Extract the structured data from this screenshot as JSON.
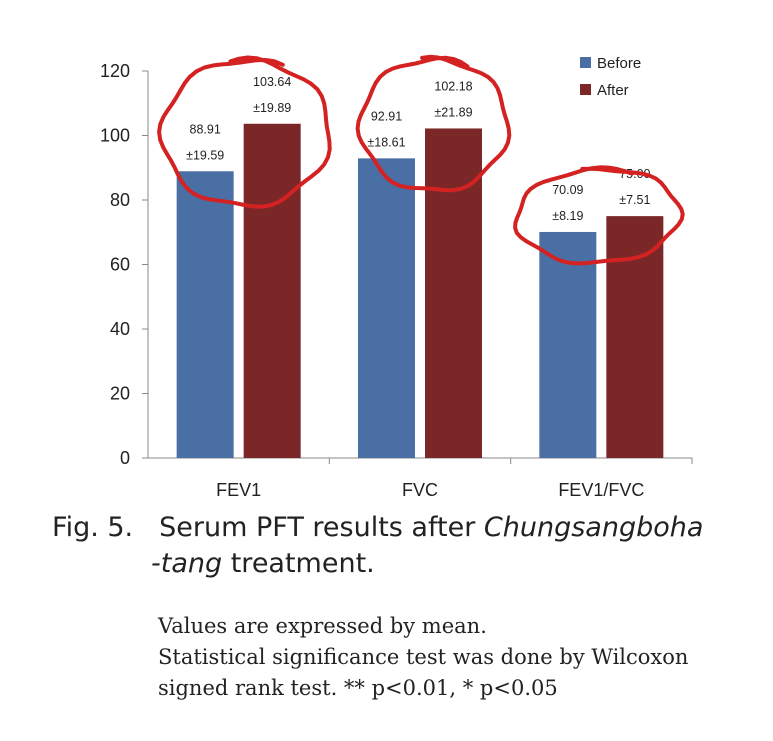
{
  "chart_data": {
    "type": "bar",
    "categories": [
      "FEV1",
      "FVC",
      "FEV1/FVC"
    ],
    "series": [
      {
        "name": "Before",
        "color": "#4A6FA5",
        "values": [
          88.91,
          92.91,
          70.09
        ],
        "sd": [
          19.59,
          18.61,
          8.19
        ]
      },
      {
        "name": "After",
        "color": "#7B2727",
        "values": [
          103.64,
          102.18,
          75.0
        ],
        "sd": [
          19.89,
          21.89,
          7.51
        ]
      }
    ],
    "data_labels": [
      [
        [
          "88.91",
          "±19.59"
        ],
        [
          "92.91",
          "±18.61"
        ],
        [
          "70.09",
          "±8.19"
        ]
      ],
      [
        [
          "103.64",
          "±19.89"
        ],
        [
          "102.18",
          "±21.89"
        ],
        [
          "75.00",
          "±7.51"
        ]
      ]
    ],
    "ylim": [
      0,
      120
    ],
    "yticks": [
      "0",
      "20",
      "40",
      "60",
      "80",
      "100",
      "120"
    ],
    "legend_position": "top-right",
    "grid": false,
    "annotation_color": "#D42222"
  },
  "caption": {
    "prefix": "Fig. 5.",
    "text": "Serum PFT results after ",
    "italic_1": "Chungsangboha",
    "italic_2": "-tang",
    "suffix": " treatment."
  },
  "notes": [
    "Values are expressed by mean.",
    "Statistical significance test was done by Wilcoxon",
    "signed rank test. ** p<0.01, * p<0.05"
  ]
}
